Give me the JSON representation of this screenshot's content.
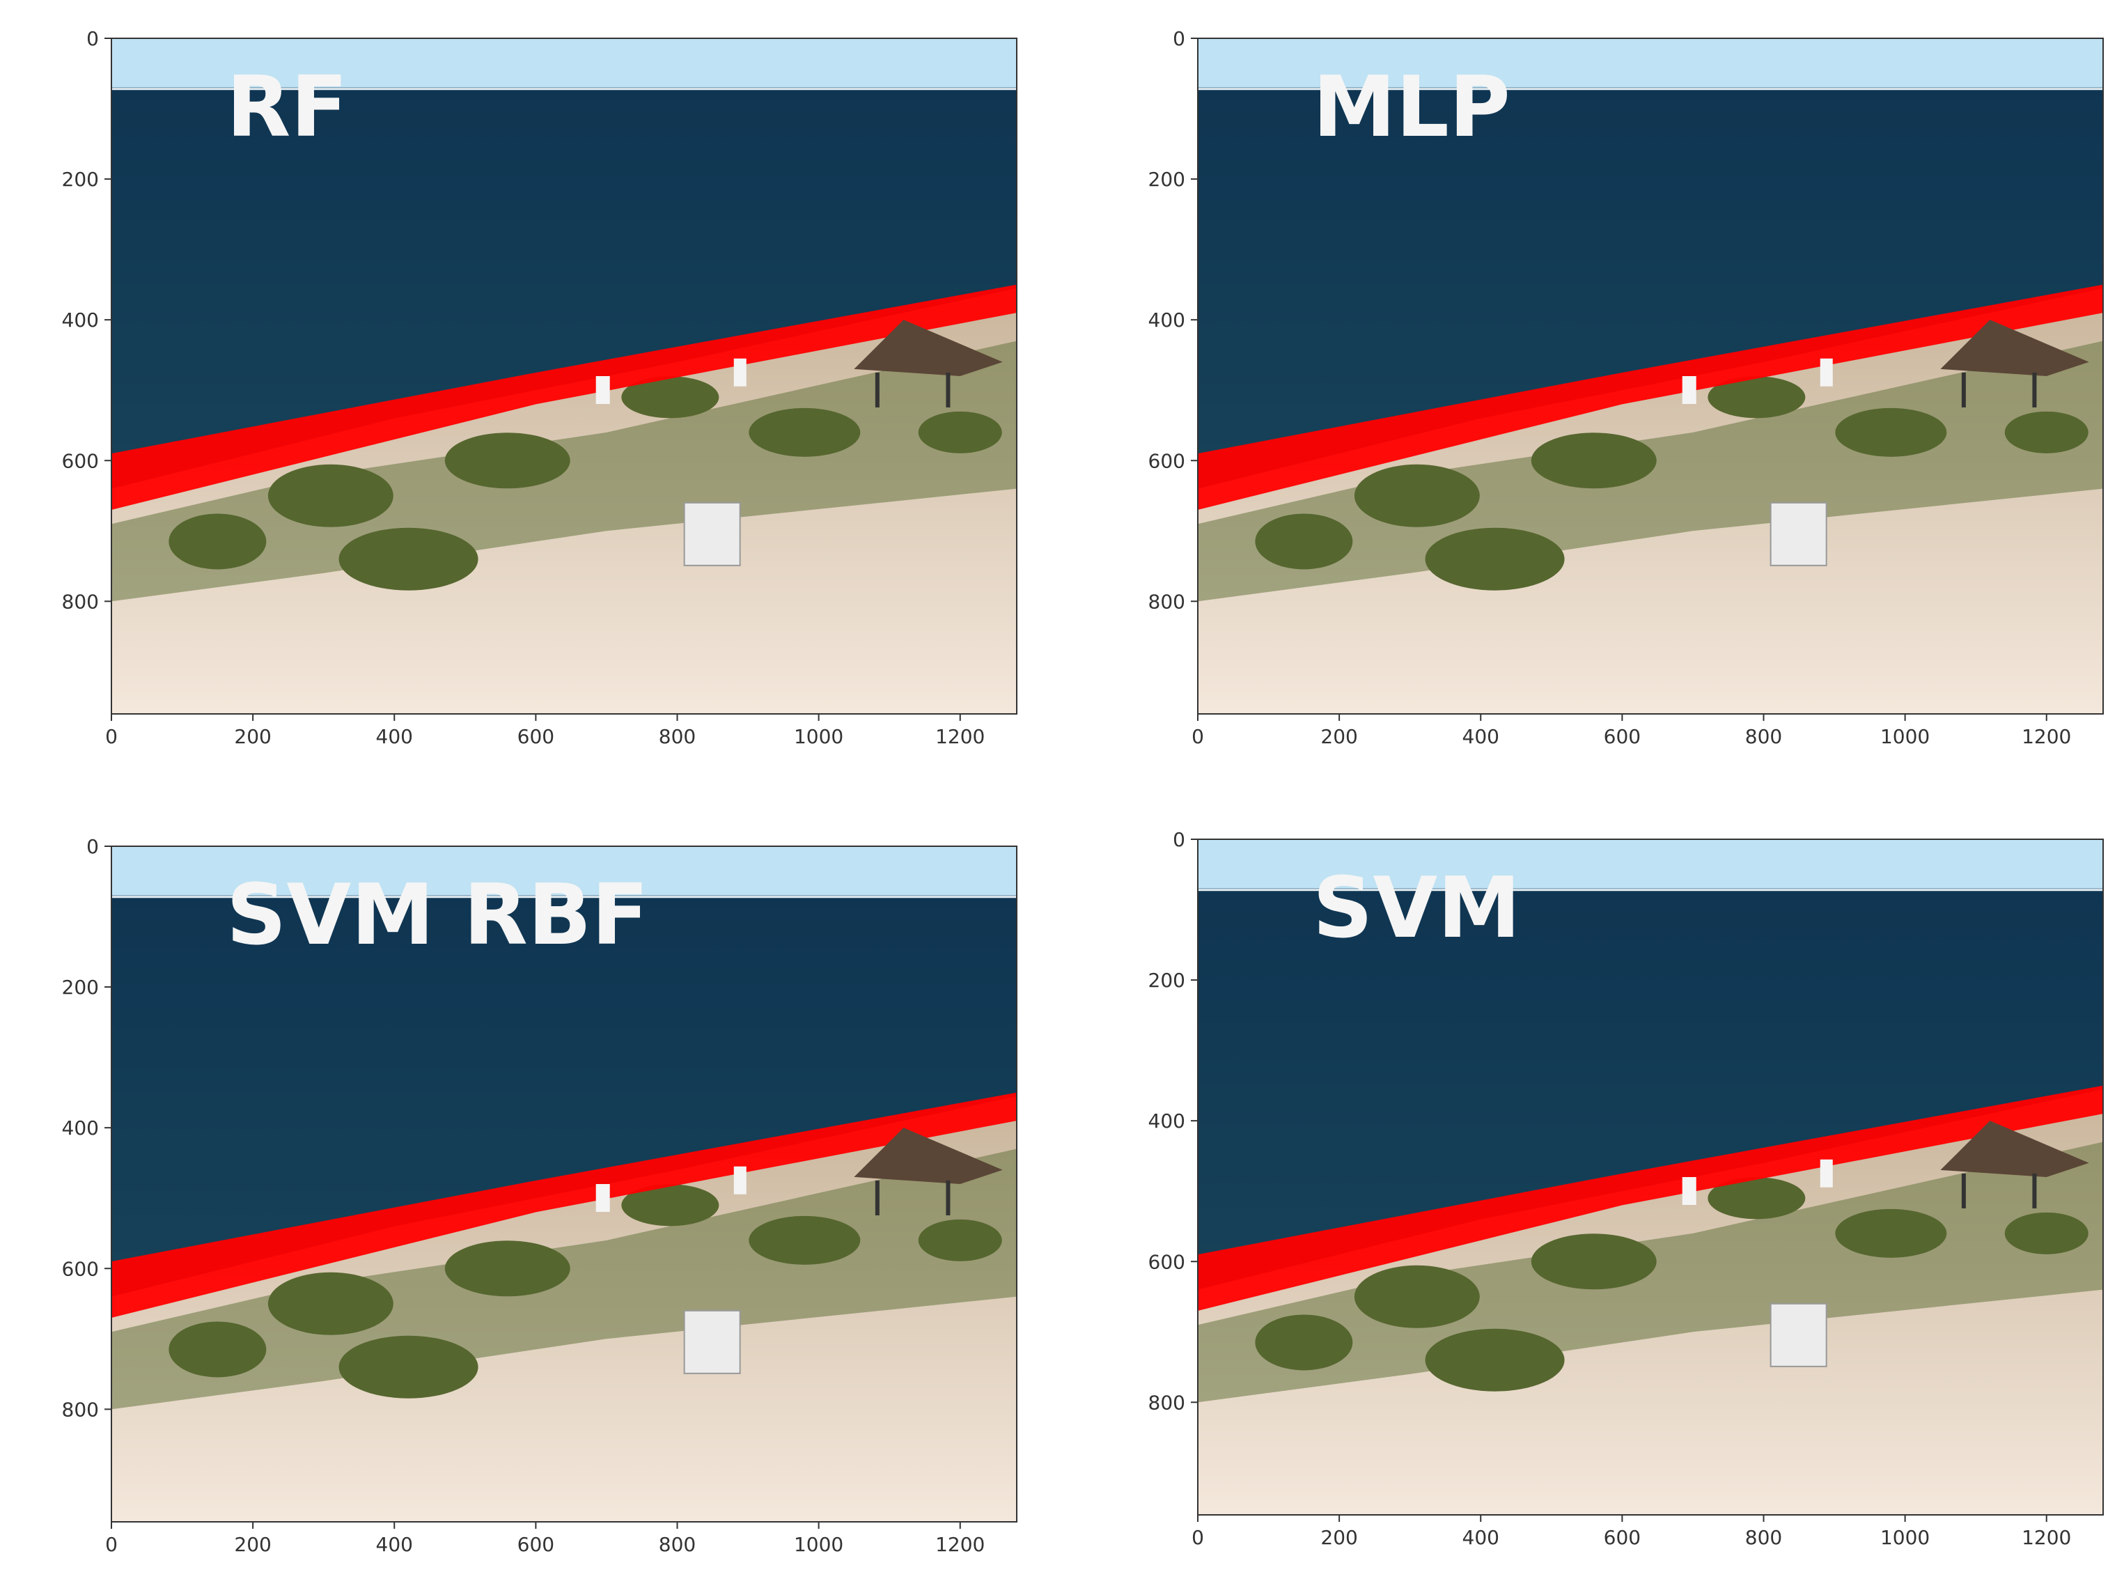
{
  "figure": {
    "panels": [
      {
        "label": "RF"
      },
      {
        "label": "MLP"
      },
      {
        "label": "SVM RBF"
      },
      {
        "label": "SVM"
      }
    ],
    "x_ticks": [
      "0",
      "200",
      "400",
      "600",
      "800",
      "1000",
      "1200"
    ],
    "y_ticks": [
      "0",
      "200",
      "400",
      "600",
      "800"
    ],
    "x_extent": [
      0,
      1280
    ],
    "y_extent": [
      0,
      960
    ],
    "colors": {
      "sky": "#bfe2f4",
      "sea": "#123f5a",
      "sand": "#f0dfcf",
      "vegetation": "#66753f",
      "segmentation": "#ff0000"
    }
  }
}
